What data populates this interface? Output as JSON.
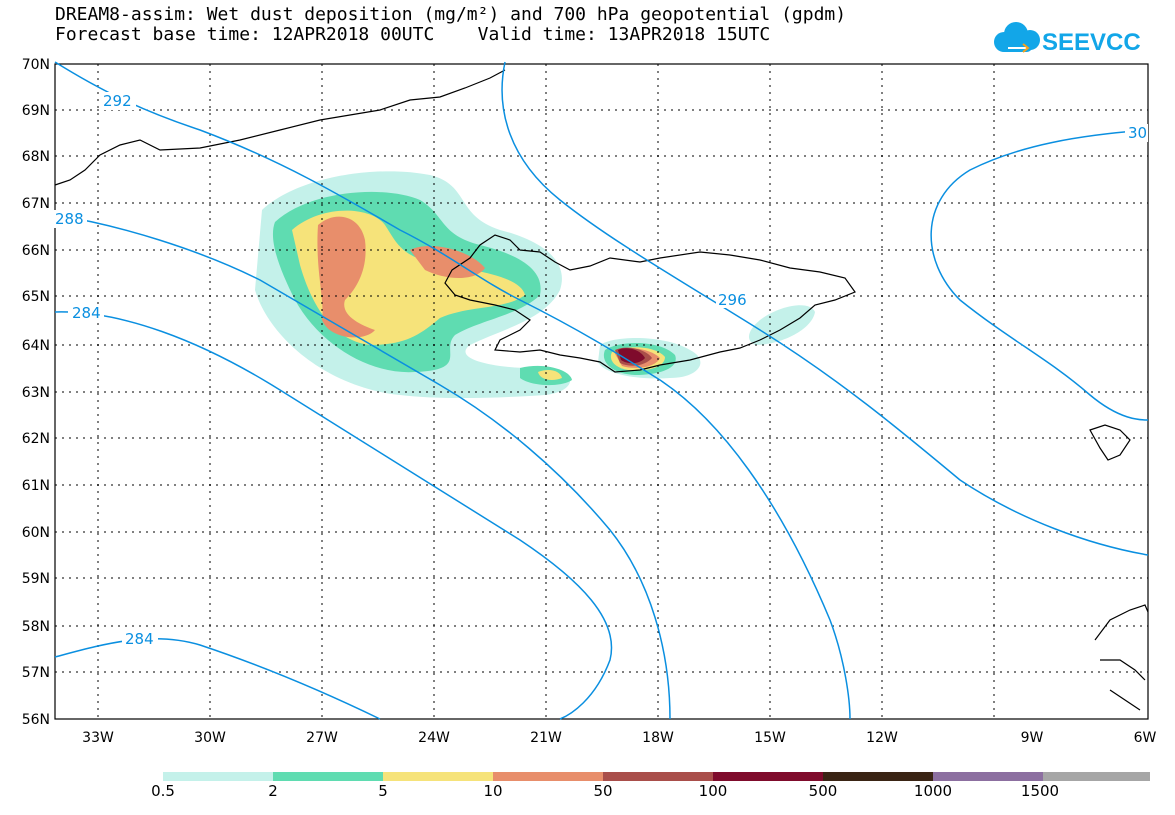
{
  "title": {
    "line1": "DREAM8-assim: Wet dust deposition (mg/m²) and 700 hPa geopotential (gpdm)",
    "line2": "Forecast base time: 12APR2018 00UTC    Valid time: 13APR2018 15UTC"
  },
  "logo": {
    "text": "SEEVCCC",
    "color": "#12a6e8"
  },
  "map": {
    "lat_labels": [
      "70N",
      "69N",
      "68N",
      "67N",
      "66N",
      "65N",
      "64N",
      "63N",
      "62N",
      "61N",
      "60N",
      "59N",
      "58N",
      "57N",
      "56N"
    ],
    "lon_labels": [
      "33W",
      "30W",
      "27W",
      "24W",
      "21W",
      "18W",
      "15W",
      "12W",
      "9W",
      "6W"
    ],
    "isoline_labels": [
      "292",
      "288",
      "284",
      "296",
      "284",
      "30"
    ],
    "isoline_color": "#0a8fe0"
  },
  "legend": {
    "colors": [
      "#c4f1ea",
      "#5fdcb1",
      "#f6e37a",
      "#e88e6b",
      "#a94e4a",
      "#7f0b2c",
      "#3a2414",
      "#8c6fa0",
      "#a6a6a6"
    ],
    "labels": [
      "0.5",
      "2",
      "5",
      "10",
      "50",
      "100",
      "500",
      "1000",
      "1500"
    ]
  }
}
